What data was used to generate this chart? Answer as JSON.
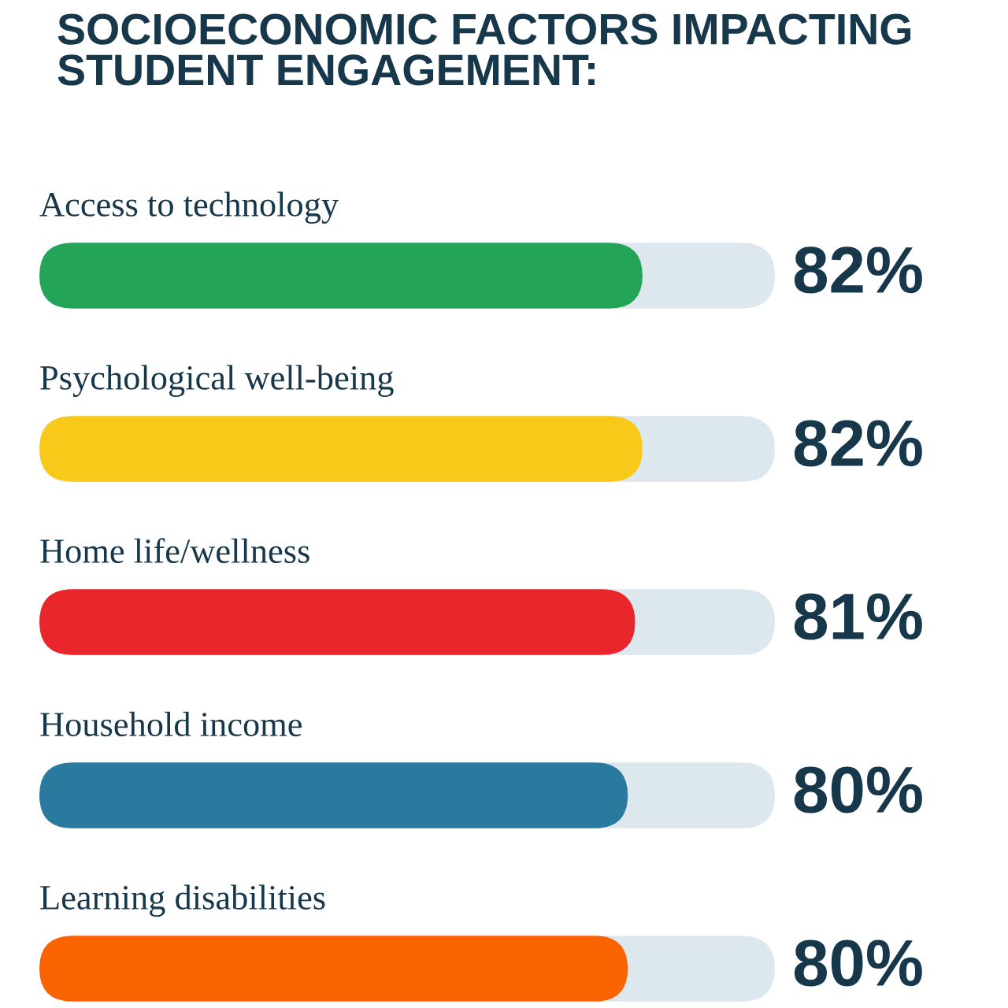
{
  "chart_data": {
    "type": "bar",
    "orientation": "horizontal",
    "title": "SOCIOECONOMIC FACTORS IMPACTING STUDENT ENGAGEMENT:",
    "categories": [
      "Access to technology",
      "Psychological well-being",
      "Home life/wellness",
      "Household income",
      "Learning disabilities"
    ],
    "values": [
      82,
      82,
      81,
      80,
      80
    ],
    "colors": [
      "#24a457",
      "#f8c918",
      "#e8262b",
      "#2a7aa0",
      "#fa6400"
    ],
    "value_labels": [
      "82%",
      "82%",
      "81%",
      "80%",
      "80%"
    ],
    "xlim": [
      0,
      100
    ]
  }
}
